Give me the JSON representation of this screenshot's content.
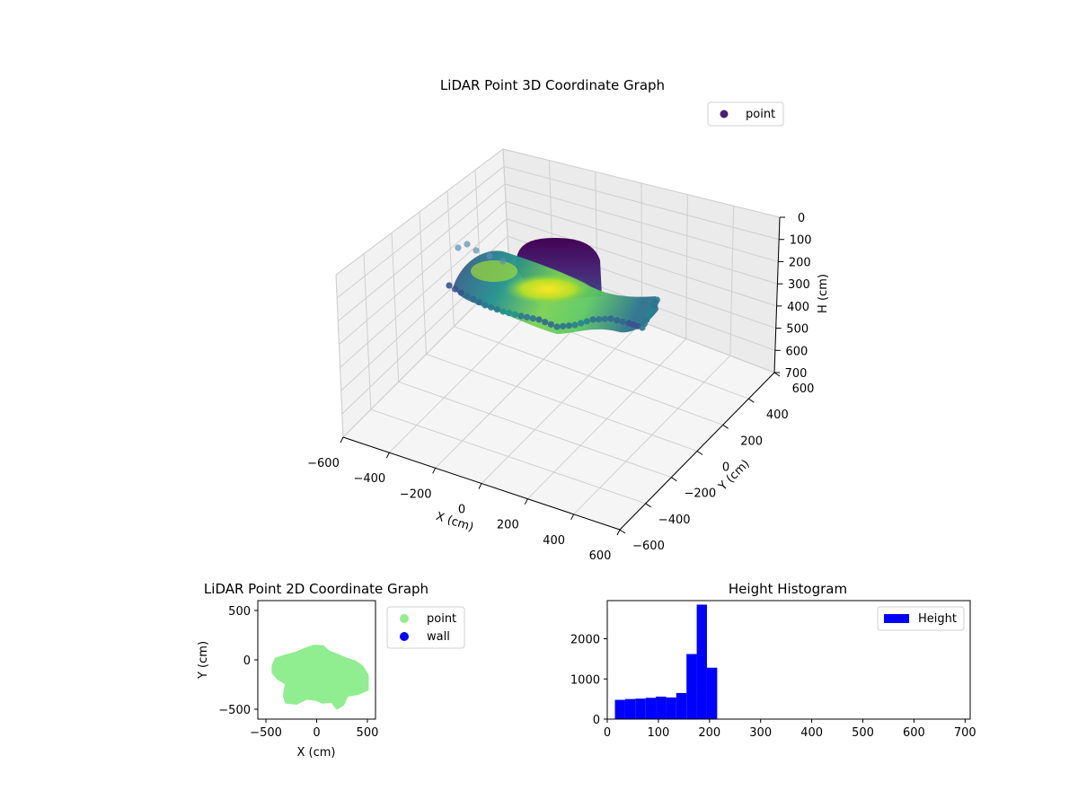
{
  "chart_data": [
    {
      "type": "scatter3d",
      "title": "LiDAR Point 3D Coordinate Graph",
      "xlabel": "X (cm)",
      "ylabel": "Y (cm)",
      "zlabel": "H (cm)",
      "xlim": [
        -600,
        600
      ],
      "ylim": [
        -600,
        600
      ],
      "zlim": [
        700,
        0
      ],
      "x_ticks": [
        "−600",
        "−400",
        "−200",
        "0",
        "200",
        "400",
        "600"
      ],
      "y_ticks": [
        "−600",
        "−400",
        "−200",
        "0",
        "200",
        "400",
        "600"
      ],
      "z_ticks": [
        "0",
        "100",
        "200",
        "300",
        "400",
        "500",
        "600",
        "700"
      ],
      "colormap": "viridis",
      "grid": true,
      "legend": {
        "placement": "top-right",
        "entries": [
          {
            "name": "point",
            "color": "#482173"
          }
        ]
      }
    },
    {
      "type": "scatter",
      "title": "LiDAR Point 2D Coordinate Graph",
      "xlabel": "X (cm)",
      "ylabel": "Y (cm)",
      "xlim": [
        -580,
        580
      ],
      "ylim": [
        -600,
        600
      ],
      "x_ticks": [
        -500,
        0,
        500
      ],
      "y_ticks": [
        -500,
        0,
        500
      ],
      "x_tick_labels": [
        "−500",
        "0",
        "500"
      ],
      "y_tick_labels": [
        "−500",
        "0",
        "500"
      ],
      "series": [
        {
          "name": "point",
          "color": "#90ee90",
          "outline": [
            [
              -430,
              -60
            ],
            [
              -400,
              10
            ],
            [
              -310,
              40
            ],
            [
              -200,
              70
            ],
            [
              -110,
              110
            ],
            [
              -30,
              140
            ],
            [
              60,
              135
            ],
            [
              120,
              80
            ],
            [
              200,
              50
            ],
            [
              290,
              10
            ],
            [
              380,
              -20
            ],
            [
              450,
              -70
            ],
            [
              500,
              -160
            ],
            [
              500,
              -300
            ],
            [
              410,
              -340
            ],
            [
              300,
              -360
            ],
            [
              260,
              -450
            ],
            [
              200,
              -490
            ],
            [
              150,
              -420
            ],
            [
              60,
              -430
            ],
            [
              -10,
              -400
            ],
            [
              -100,
              -390
            ],
            [
              -200,
              -440
            ],
            [
              -300,
              -430
            ],
            [
              -320,
              -360
            ],
            [
              -300,
              -240
            ],
            [
              -380,
              -190
            ],
            [
              -430,
              -130
            ]
          ]
        },
        {
          "name": "wall",
          "color": "#0000ff"
        }
      ],
      "legend": {
        "placement": "outside-right",
        "entries": [
          {
            "name": "point",
            "color": "#90ee90"
          },
          {
            "name": "wall",
            "color": "#0000ff"
          }
        ]
      }
    },
    {
      "type": "bar",
      "title": "Height Histogram",
      "xlim": [
        0,
        710
      ],
      "ylim": [
        0,
        2950
      ],
      "x_ticks": [
        0,
        100,
        200,
        300,
        400,
        500,
        600,
        700
      ],
      "y_ticks": [
        0,
        1000,
        2000
      ],
      "bins": [
        {
          "x0": 15,
          "x1": 35,
          "value": 480
        },
        {
          "x0": 35,
          "x1": 55,
          "value": 500
        },
        {
          "x0": 55,
          "x1": 75,
          "value": 510
        },
        {
          "x0": 75,
          "x1": 95,
          "value": 530
        },
        {
          "x0": 95,
          "x1": 115,
          "value": 560
        },
        {
          "x0": 115,
          "x1": 135,
          "value": 540
        },
        {
          "x0": 135,
          "x1": 155,
          "value": 650
        },
        {
          "x0": 155,
          "x1": 175,
          "value": 1620
        },
        {
          "x0": 175,
          "x1": 195,
          "value": 2850
        },
        {
          "x0": 195,
          "x1": 215,
          "value": 1280
        }
      ],
      "series": [
        {
          "name": "Height",
          "color": "#0000ff"
        }
      ],
      "legend": {
        "placement": "top-right",
        "entries": [
          {
            "name": "Height",
            "color": "#0000ff"
          }
        ]
      }
    }
  ]
}
